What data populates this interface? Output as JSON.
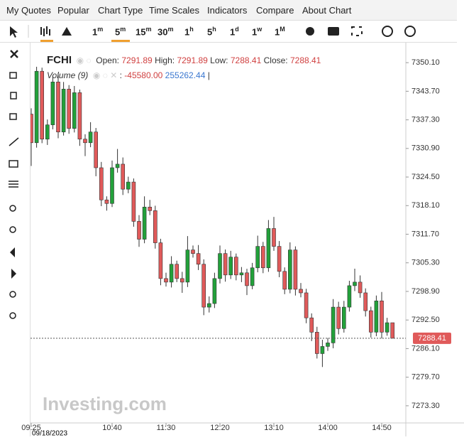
{
  "menu": {
    "items": [
      "My Quotes",
      "Popular",
      "Chart Type",
      "Time Scales",
      "Indicators",
      "Compare",
      "About Chart"
    ]
  },
  "toolbar": {
    "timeframes": [
      {
        "num": "1",
        "unit": "m"
      },
      {
        "num": "5",
        "unit": "m"
      },
      {
        "num": "15",
        "unit": "m"
      },
      {
        "num": "30",
        "unit": "m"
      },
      {
        "num": "1",
        "unit": "h"
      },
      {
        "num": "5",
        "unit": "h"
      },
      {
        "num": "1",
        "unit": "d"
      },
      {
        "num": "1",
        "unit": "w"
      },
      {
        "num": "1",
        "unit": "M"
      }
    ]
  },
  "legend": {
    "symbol": "FCHI",
    "open_label": "Open:",
    "open": "7291.89",
    "high_label": "High:",
    "high": "7291.89",
    "low_label": "Low:",
    "low": "7288.41",
    "close_label": "Close:",
    "close": "7288.41",
    "volume_label": "Volume (9)",
    "volume_sep": ":",
    "volume_a": "-45580.00",
    "volume_b": "255262.44",
    "cursor": "|"
  },
  "watermark": "Investing.com",
  "chart_data": {
    "type": "candlestick",
    "up_color": "#22a13a",
    "down_color": "#e05a5a",
    "categories": [
      "09:25",
      null,
      null,
      null,
      null,
      null,
      null,
      null,
      null,
      null,
      null,
      null,
      null,
      null,
      null,
      "10:40",
      null,
      null,
      null,
      null,
      null,
      null,
      null,
      null,
      null,
      "11:30",
      null,
      null,
      null,
      null,
      null,
      null,
      null,
      null,
      null,
      "12:20",
      null,
      null,
      null,
      null,
      null,
      null,
      null,
      null,
      null,
      "13:10",
      null,
      null,
      null,
      null,
      null,
      null,
      null,
      null,
      null,
      "14:00",
      null,
      null,
      null,
      null,
      null,
      null,
      null,
      null,
      null,
      "14:50",
      null,
      null
    ],
    "x_date": "09/18/2023",
    "open": [
      7338.58,
      7332.18,
      7348.18,
      7332.98,
      7336.18,
      7345.78,
      7334.58,
      7344.18,
      7335.38,
      7343.38,
      7332.98,
      7332.18,
      7334.58,
      7326.58,
      7319.38,
      7318.58,
      7326.58,
      7327.38,
      7321.78,
      7323.38,
      7314.58,
      7310.58,
      7317.78,
      7316.98,
      7309.78,
      7301.78,
      7300.98,
      7304.98,
      7301.78,
      7300.98,
      7308.18,
      7307.38,
      7304.98,
      7295.38,
      7296.18,
      7301.78,
      7307.38,
      7302.58,
      7306.58,
      7302.58,
      7303.06,
      7300.18,
      7304.18,
      7308.98,
      7304.18,
      7312.98,
      7308.98,
      7303.38,
      7299.38,
      7308.18,
      7299.38,
      7298.58,
      7292.98,
      7289.78,
      7284.98,
      7286.58,
      7287.38,
      7295.38,
      7290.58,
      7295.38,
      7300.18,
      7300.98,
      7298.58,
      7294.58,
      7289.78,
      7296.78,
      7289.78,
      7291.89
    ],
    "high": [
      7339.88,
      7349.18,
      7348.98,
      7337.38,
      7347.18,
      7347.78,
      7345.78,
      7345.08,
      7344.88,
      7344.08,
      7334.08,
      7336.78,
      7335.48,
      7327.88,
      7320.18,
      7328.18,
      7330.78,
      7328.88,
      7324.58,
      7324.18,
      7315.98,
      7320.18,
      7319.38,
      7318.08,
      7310.68,
      7303.08,
      7306.78,
      7305.78,
      7303.28,
      7311.28,
      7309.18,
      7309.28,
      7306.08,
      7297.78,
      7303.08,
      7309.18,
      7308.28,
      7307.98,
      7307.38,
      7304.36,
      7303.96,
      7305.28,
      7311.38,
      7309.98,
      7314.88,
      7315.58,
      7310.18,
      7304.28,
      7309.88,
      7308.98,
      7300.78,
      7299.48,
      7293.98,
      7290.98,
      7288.08,
      7288.48,
      7297.18,
      7296.58,
      7296.78,
      7301.28,
      7303.98,
      7302.48,
      7299.58,
      7295.48,
      7297.98,
      7298.78,
      7292.99,
      7291.89
    ],
    "low": [
      7326.98,
      7331.08,
      7332.08,
      7331.68,
      7335.18,
      7333.18,
      7333.78,
      7334.18,
      7334.48,
      7331.48,
      7329.18,
      7331.18,
      7324.68,
      7317.98,
      7316.98,
      7317.78,
      7325.48,
      7320.48,
      7320.88,
      7313.38,
      7308.88,
      7309.68,
      7315.98,
      7308.48,
      7300.28,
      7299.98,
      7299.78,
      7300.98,
      7298.58,
      7299.88,
      7306.48,
      7303.68,
      7293.58,
      7294.18,
      7295.18,
      7300.68,
      7301.08,
      7301.68,
      7301.38,
      7300.98,
      7298.08,
      7299.38,
      7303.18,
      7302.98,
      7303.28,
      7307.98,
      7302.08,
      7298.28,
      7298.48,
      7297.98,
      7297.58,
      7291.78,
      7287.78,
      7283.88,
      7281.98,
      7285.58,
      7286.18,
      7289.28,
      7289.68,
      7294.38,
      7298.98,
      7297.48,
      7293.28,
      7288.58,
      7288.88,
      7288.38,
      7288.98,
      7288.41
    ],
    "close": [
      7332.18,
      7348.18,
      7332.98,
      7336.18,
      7345.78,
      7334.58,
      7344.18,
      7335.38,
      7343.38,
      7332.98,
      7332.18,
      7334.58,
      7326.58,
      7319.38,
      7318.58,
      7326.58,
      7327.38,
      7321.78,
      7323.38,
      7314.58,
      7310.58,
      7317.78,
      7316.98,
      7309.78,
      7301.78,
      7300.98,
      7304.98,
      7301.78,
      7300.98,
      7308.18,
      7307.38,
      7304.98,
      7295.38,
      7296.18,
      7301.78,
      7307.38,
      7302.58,
      7306.58,
      7302.58,
      7303.06,
      7300.18,
      7304.18,
      7308.98,
      7304.18,
      7312.98,
      7308.98,
      7303.38,
      7299.38,
      7308.18,
      7299.38,
      7298.58,
      7292.98,
      7289.78,
      7284.98,
      7286.58,
      7287.38,
      7295.38,
      7290.58,
      7295.38,
      7300.18,
      7300.98,
      7298.58,
      7294.58,
      7289.78,
      7296.78,
      7289.78,
      7291.89,
      7288.41
    ],
    "ylim": [
      7269.46,
      7354.26
    ],
    "yticks": [
      {
        "value": 7350.1,
        "label": "7350.10"
      },
      {
        "value": 7343.7,
        "label": "7343.70"
      },
      {
        "value": 7337.3,
        "label": "7337.30"
      },
      {
        "value": 7330.9,
        "label": "7330.90"
      },
      {
        "value": 7324.5,
        "label": "7324.50"
      },
      {
        "value": 7318.1,
        "label": "7318.10"
      },
      {
        "value": 7311.7,
        "label": "7311.70"
      },
      {
        "value": 7305.3,
        "label": "7305.30"
      },
      {
        "value": 7298.9,
        "label": "7298.90"
      },
      {
        "value": 7292.5,
        "label": "7292.50"
      },
      {
        "value": 7286.1,
        "label": "7286.10"
      },
      {
        "value": 7279.7,
        "label": "7279.70"
      },
      {
        "value": 7273.3,
        "label": "7273.30"
      }
    ],
    "last_price": 7288.41,
    "last_price_color": "#e05a5a"
  }
}
